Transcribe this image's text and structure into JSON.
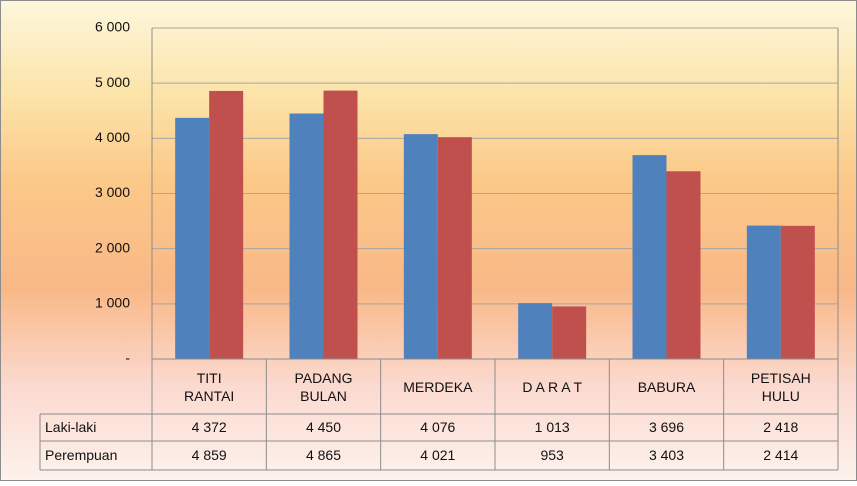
{
  "chart_data": {
    "type": "bar",
    "categories": [
      "TITI\nRANTAI",
      "PADANG\nBULAN",
      "MERDEKA",
      "D A R A T",
      "BABURA",
      "PETISAH\nHULU"
    ],
    "series": [
      {
        "name": "Laki-laki",
        "color": "#4f81bd",
        "values": [
          4372,
          4450,
          4076,
          1013,
          3696,
          2418
        ],
        "value_labels": [
          "4 372",
          "4 450",
          "4 076",
          "1 013",
          "3 696",
          "2 418"
        ]
      },
      {
        "name": "Perempuan",
        "color": "#c0504d",
        "values": [
          4859,
          4865,
          4021,
          953,
          3403,
          2414
        ],
        "value_labels": [
          "4 859",
          "4 865",
          "4 021",
          "953",
          "3 403",
          "2 414"
        ]
      }
    ],
    "ylim": [
      0,
      6000
    ],
    "yticks": [
      {
        "value": 0,
        "label": "-"
      },
      {
        "value": 1000,
        "label": "1 000"
      },
      {
        "value": 2000,
        "label": "2 000"
      },
      {
        "value": 3000,
        "label": "3 000"
      },
      {
        "value": 4000,
        "label": "4 000"
      },
      {
        "value": 5000,
        "label": "5 000"
      },
      {
        "value": 6000,
        "label": "6 000"
      }
    ],
    "grid": true
  }
}
